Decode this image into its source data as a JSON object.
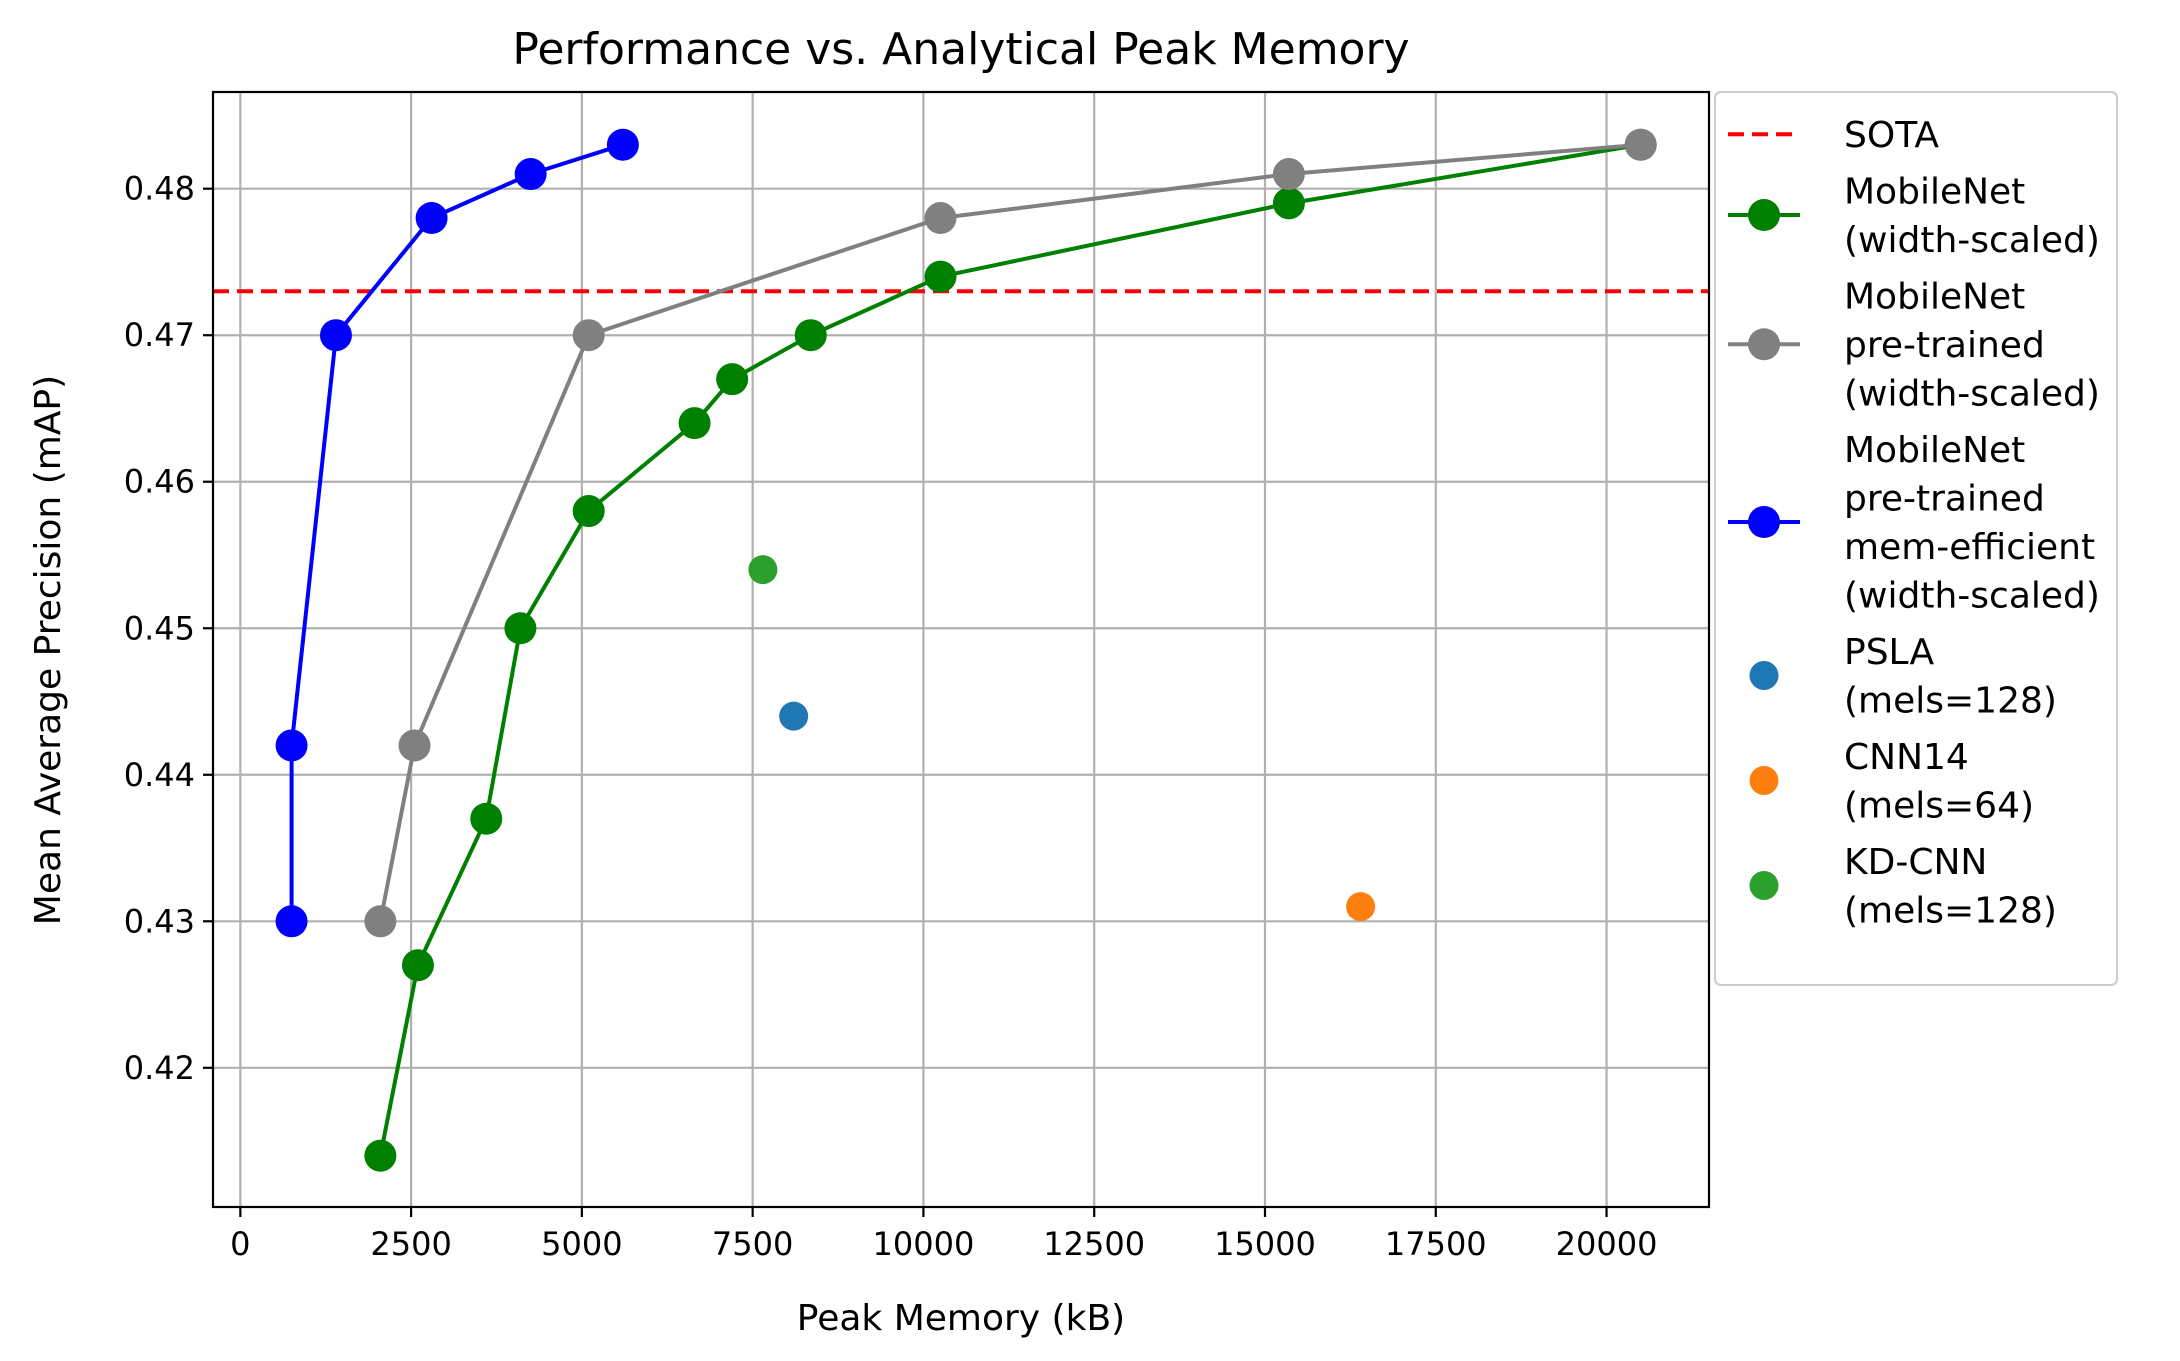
{
  "chart_data": {
    "type": "line",
    "title": "Performance vs. Analytical Peak Memory",
    "xlabel": "Peak Memory (kB)",
    "ylabel": "Mean Average Precision (mAP)",
    "xlim": [
      -400,
      21500
    ],
    "ylim": [
      0.4105,
      0.4866
    ],
    "xticks": [
      0,
      2500,
      5000,
      7500,
      10000,
      12500,
      15000,
      17500,
      20000
    ],
    "xtick_labels": [
      "0",
      "2500",
      "5000",
      "7500",
      "10000",
      "12500",
      "15000",
      "17500",
      "20000"
    ],
    "yticks": [
      0.42,
      0.43,
      0.44,
      0.45,
      0.46,
      0.47,
      0.48
    ],
    "ytick_labels": [
      "0.42",
      "0.43",
      "0.44",
      "0.45",
      "0.46",
      "0.47",
      "0.48"
    ],
    "grid": true,
    "legend_position": "outside-right",
    "reference_line": {
      "name": "SOTA",
      "y": 0.473,
      "color": "#ff0000",
      "style": "dashed"
    },
    "series": [
      {
        "name": "MobileNet (width-scaled)",
        "legend_lines": [
          "MobileNet",
          "(width-scaled)"
        ],
        "color": "#008000",
        "mode": "line+markers",
        "x": [
          2050,
          2600,
          3600,
          4100,
          5100,
          6650,
          7200,
          8350,
          10250,
          15350,
          20500
        ],
        "y": [
          0.414,
          0.427,
          0.437,
          0.45,
          0.458,
          0.464,
          0.467,
          0.47,
          0.474,
          0.479,
          0.483
        ]
      },
      {
        "name": "MobileNet pre-trained (width-scaled)",
        "legend_lines": [
          "MobileNet",
          "pre-trained",
          "(width-scaled)"
        ],
        "color": "#808080",
        "mode": "line+markers",
        "x": [
          2050,
          2550,
          5100,
          10250,
          15350,
          20500
        ],
        "y": [
          0.43,
          0.442,
          0.47,
          0.478,
          0.481,
          0.483
        ]
      },
      {
        "name": "MobileNet pre-trained mem-efficient (width-scaled)",
        "legend_lines": [
          "MobileNet",
          "pre-trained",
          "mem-efficient",
          "(width-scaled)"
        ],
        "color": "#0000ff",
        "mode": "line+markers",
        "x": [
          750,
          750,
          1400,
          2800,
          4250,
          5600
        ],
        "y": [
          0.43,
          0.442,
          0.47,
          0.478,
          0.481,
          0.483
        ]
      },
      {
        "name": "PSLA (mels=128)",
        "legend_lines": [
          "PSLA",
          "(mels=128)"
        ],
        "color": "#1f77b4",
        "mode": "markers",
        "x": [
          8100
        ],
        "y": [
          0.444
        ]
      },
      {
        "name": "CNN14 (mels=64)",
        "legend_lines": [
          "CNN14",
          "(mels=64)"
        ],
        "color": "#ff7f0e",
        "mode": "markers",
        "x": [
          16400
        ],
        "y": [
          0.431
        ]
      },
      {
        "name": "KD-CNN (mels=128)",
        "legend_lines": [
          "KD-CNN",
          "(mels=128)"
        ],
        "color": "#2ca02c",
        "mode": "markers",
        "x": [
          7650
        ],
        "y": [
          0.454
        ]
      }
    ]
  }
}
